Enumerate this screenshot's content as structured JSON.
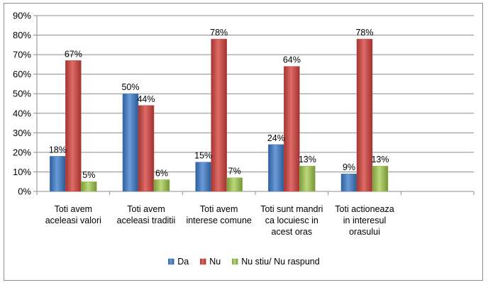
{
  "chart_data": {
    "type": "bar",
    "categories": [
      [
        "Toti avem",
        "aceleasi valori"
      ],
      [
        "Toti avem",
        "aceleasi traditii"
      ],
      [
        "Toti avem",
        "interese comune"
      ],
      [
        "Toti sunt mandri",
        "ca locuiesc in",
        "acest oras"
      ],
      [
        "Toti actioneaza",
        "in interesul",
        "orasului"
      ],
      []
    ],
    "series": [
      {
        "name": "Da",
        "values": [
          18,
          50,
          15,
          24,
          9,
          null
        ],
        "labels": [
          "18%",
          "50%",
          "15%",
          "24%",
          "9%",
          null
        ],
        "color": "#4a7ebb"
      },
      {
        "name": "Nu",
        "values": [
          67,
          44,
          78,
          64,
          78,
          null
        ],
        "labels": [
          "67%",
          "44%",
          "78%",
          "64%",
          "78%",
          null
        ],
        "color": "#c0504d"
      },
      {
        "name": "Nu stiu/ Nu raspund",
        "values": [
          5,
          6,
          7,
          13,
          13,
          null
        ],
        "labels": [
          "5%",
          "6%",
          "7%",
          "13%",
          "13%",
          null
        ],
        "color": "#9bbb59"
      }
    ],
    "ylim": [
      0,
      90
    ],
    "yticks": [
      "0%",
      "10%",
      "20%",
      "30%",
      "40%",
      "50%",
      "60%",
      "70%",
      "80%",
      "90%"
    ],
    "grid": true,
    "legend_position": "bottom"
  }
}
